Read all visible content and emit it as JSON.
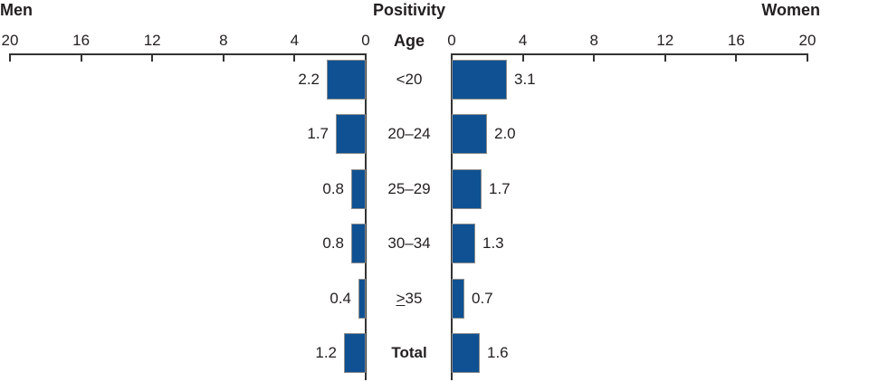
{
  "header": {
    "men_label": "Men",
    "title": "Positivity",
    "women_label": "Women",
    "age_header": "Age"
  },
  "chart_data": {
    "type": "bar",
    "subtype": "tornado-pyramid",
    "title": "Positivity",
    "center_axis_label": "Age",
    "categories": [
      "<20",
      "20–24",
      "25–29",
      "30–34",
      "≥35",
      "Total"
    ],
    "series": [
      {
        "name": "Men",
        "side": "left",
        "values": [
          2.2,
          1.7,
          0.8,
          0.8,
          0.4,
          1.2
        ]
      },
      {
        "name": "Women",
        "side": "right",
        "values": [
          3.1,
          2.0,
          1.7,
          1.3,
          0.7,
          1.6
        ]
      }
    ],
    "axis": {
      "ticks": [
        0,
        4,
        8,
        12,
        16,
        20
      ],
      "min": 0,
      "max": 20
    },
    "grid": false,
    "legend": "none",
    "bold_category": "Total",
    "bar_color": "#0F5192",
    "bar_border_color": "#8E8E8E",
    "axis_color": "#333333",
    "text_color": "#231F20"
  }
}
